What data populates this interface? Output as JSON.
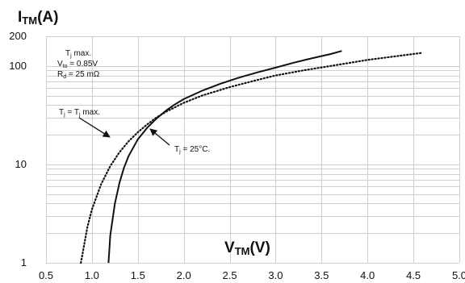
{
  "chart_data": {
    "type": "line",
    "title": "",
    "ylabel": {
      "main": "I",
      "sub": "TM",
      "unit": "(A)"
    },
    "xlabel": {
      "main": "V",
      "sub": "TM",
      "unit": "(V)"
    },
    "xlim": [
      0.5,
      5.0
    ],
    "ylim": [
      1,
      200
    ],
    "y_scale": "log",
    "grid": true,
    "x_ticks": [
      0.5,
      1.0,
      1.5,
      2.0,
      2.5,
      3.0,
      3.5,
      4.0,
      4.5,
      5.0
    ],
    "x_tick_labels": [
      "0.5",
      "1.0",
      "1.5",
      "2.0",
      "2.5",
      "3.0",
      "3.5",
      "4.0",
      "4.5",
      "5.0"
    ],
    "y_ticks": [
      1,
      10,
      100,
      200
    ],
    "y_tick_labels": [
      "1",
      "10",
      "100",
      "200"
    ],
    "series": [
      {
        "label_parts": [
          "T",
          "j",
          " = T",
          "j",
          " max."
        ],
        "style": "dotted",
        "color": "#111111",
        "x": [
          0.88,
          0.95,
          1.0,
          1.1,
          1.2,
          1.3,
          1.4,
          1.5,
          1.6,
          1.7,
          1.8,
          2.0,
          2.2,
          2.5,
          2.8,
          3.0,
          3.3,
          3.6,
          4.0,
          4.3,
          4.6
        ],
        "y": [
          1,
          2.3,
          3.5,
          6.3,
          9.6,
          13.3,
          17.2,
          21.2,
          25.4,
          29.8,
          34,
          42.2,
          50,
          61,
          72,
          80,
          90,
          100,
          115,
          125,
          136
        ]
      },
      {
        "label_parts": [
          "T",
          "j",
          " = 25°C."
        ],
        "style": "solid",
        "color": "#111111",
        "x": [
          1.18,
          1.2,
          1.25,
          1.3,
          1.35,
          1.4,
          1.5,
          1.6,
          1.7,
          1.8,
          1.9,
          2.0,
          2.2,
          2.4,
          2.6,
          2.8,
          3.0,
          3.2,
          3.4,
          3.6,
          3.72
        ],
        "y": [
          1,
          1.9,
          4,
          6.5,
          9.3,
          12.2,
          18,
          23.5,
          29,
          34.8,
          40.5,
          46,
          56,
          66,
          76,
          86,
          96,
          108,
          120,
          132,
          142
        ]
      }
    ],
    "annotation": {
      "line1": [
        "T",
        "j",
        " max."
      ],
      "line2": [
        "V",
        "to",
        " = 0.85V"
      ],
      "line3": [
        "R",
        "d",
        " = 25 mΩ"
      ]
    }
  }
}
